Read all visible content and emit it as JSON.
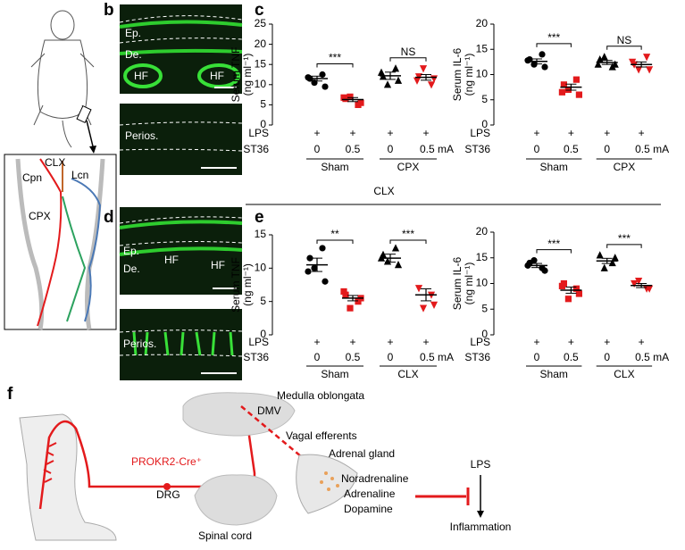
{
  "panel_labels": [
    "b",
    "c",
    "d",
    "e",
    "f"
  ],
  "divider_label": "CLX",
  "panel_a": {
    "labels": [
      "CLX",
      "Lcn",
      "Cpn",
      "CPX"
    ]
  },
  "micrographs": {
    "b_top": [
      "Ep.",
      "De.",
      "HF",
      "HF"
    ],
    "b_bottom": [
      "Perios."
    ],
    "d_top": [
      "Ep.",
      "De.",
      "HF",
      "HF"
    ],
    "d_bottom": [
      "Perios."
    ]
  },
  "panel_f": {
    "labels": [
      "Medulla oblongata",
      "DMV",
      "Vagal efferents",
      "Adrenal gland",
      "PROKR2-Cre⁺",
      "DRG",
      "Spinal cord",
      "Noradrenaline",
      "Adrenaline",
      "Dopamine",
      "LPS",
      "Inflammation"
    ]
  },
  "chart_data": [
    {
      "type": "dotplot",
      "ylabel": [
        "Serum TNF",
        "(ng ml⁻¹)"
      ],
      "ylim": [
        0,
        25
      ],
      "yticks": [
        0,
        5,
        10,
        15,
        20,
        25
      ],
      "row_labels": [
        "LPS",
        "ST36"
      ],
      "lps": [
        "+",
        "+",
        "+",
        "+"
      ],
      "st36": [
        "0",
        "0.5",
        "0",
        "0.5 mA"
      ],
      "groups": [
        "Sham",
        "CPX"
      ],
      "colors": [
        "#000000",
        "#e31a1c",
        "#000000",
        "#e31a1c"
      ],
      "markers": [
        "circle",
        "square",
        "triangle-up",
        "triangle-down"
      ],
      "points": [
        [
          11.5,
          12.5,
          10.5,
          9.5,
          11.8
        ],
        [
          6.5,
          5,
          7,
          5.5,
          6.8
        ],
        [
          12,
          14,
          10,
          11,
          13
        ],
        [
          12,
          10,
          14,
          11.5,
          11
        ]
      ],
      "means": [
        11.5,
        6.3,
        12.2,
        11.8
      ],
      "sems": [
        0.6,
        0.5,
        0.9,
        0.7
      ],
      "significance": [
        "***",
        "NS"
      ]
    },
    {
      "type": "dotplot",
      "ylabel": [
        "Serum IL-6",
        "(ng ml⁻¹)"
      ],
      "ylim": [
        0,
        20
      ],
      "yticks": [
        0,
        5,
        10,
        15,
        20
      ],
      "row_labels": [
        "LPS",
        "ST36"
      ],
      "lps": [
        "+",
        "+",
        "+",
        "+"
      ],
      "st36": [
        "0",
        "0.5",
        "0",
        "0.5 mA"
      ],
      "groups": [
        "Sham",
        "CPX"
      ],
      "colors": [
        "#000000",
        "#e31a1c",
        "#000000",
        "#e31a1c"
      ],
      "markers": [
        "circle",
        "square",
        "triangle-up",
        "triangle-down"
      ],
      "points": [
        [
          13,
          14,
          12,
          11.5,
          12.8
        ],
        [
          8,
          9,
          7,
          6,
          6.5
        ],
        [
          13,
          11.5,
          13.5,
          12,
          12
        ],
        [
          12,
          13.5,
          11,
          11,
          12.5
        ]
      ],
      "means": [
        12.6,
        7.5,
        12.4,
        12
      ],
      "sems": [
        0.5,
        0.6,
        0.4,
        0.5
      ],
      "significance": [
        "***",
        "NS"
      ]
    },
    {
      "type": "dotplot",
      "ylabel": [
        "Serum TNF",
        "(ng ml⁻¹)"
      ],
      "ylim": [
        0,
        15
      ],
      "yticks": [
        0,
        5,
        10,
        15
      ],
      "row_labels": [
        "LPS",
        "ST36"
      ],
      "lps": [
        "+",
        "+",
        "+",
        "+"
      ],
      "st36": [
        "0",
        "0.5",
        "0",
        "0.5 mA"
      ],
      "groups": [
        "Sham",
        "CLX"
      ],
      "colors": [
        "#000000",
        "#e31a1c",
        "#000000",
        "#e31a1c"
      ],
      "markers": [
        "circle",
        "square",
        "triangle-up",
        "triangle-down"
      ],
      "points": [
        [
          11.5,
          13,
          10,
          8,
          9.5
        ],
        [
          6,
          5,
          4,
          5.5,
          6.5
        ],
        [
          12,
          13,
          11,
          10.5,
          11.5
        ],
        [
          7,
          6,
          4,
          4.5
        ]
      ],
      "means": [
        10.5,
        5.5,
        11.5,
        6
      ],
      "sems": [
        1,
        0.4,
        0.6,
        0.9
      ],
      "significance": [
        "**",
        "***"
      ]
    },
    {
      "type": "dotplot",
      "ylabel": [
        "Serum IL-6",
        "(ng ml⁻¹)"
      ],
      "ylim": [
        0,
        20
      ],
      "yticks": [
        0,
        5,
        10,
        15,
        20
      ],
      "row_labels": [
        "LPS",
        "ST36"
      ],
      "lps": [
        "+",
        "+",
        "+",
        "+"
      ],
      "st36": [
        "0",
        "0.5",
        "0",
        "0.5 mA"
      ],
      "groups": [
        "Sham",
        "CLX"
      ],
      "colors": [
        "#000000",
        "#e31a1c",
        "#000000",
        "#e31a1c"
      ],
      "markers": [
        "circle",
        "square",
        "triangle-up",
        "triangle-down"
      ],
      "points": [
        [
          14,
          13,
          14.5,
          12.5,
          13.5
        ],
        [
          10,
          9,
          7,
          8,
          9.5
        ],
        [
          15.5,
          14,
          13,
          15
        ],
        [
          10,
          9,
          10.5,
          9
        ]
      ],
      "means": [
        13.5,
        8.7,
        14.4,
        9.6
      ],
      "sems": [
        0.4,
        0.6,
        0.5,
        0.4
      ],
      "significance": [
        "***",
        "***"
      ]
    }
  ]
}
